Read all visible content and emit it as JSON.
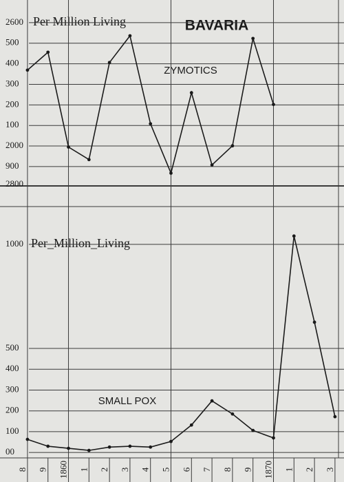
{
  "chart_data": [
    {
      "type": "line",
      "title": "BAVARIA",
      "axis_label": "Per Million Living",
      "annotation": "2800",
      "x": [
        1858,
        1859,
        1860,
        1861,
        1862,
        1863,
        1864,
        1865,
        1866,
        1867,
        1868,
        1869,
        1870
      ],
      "series": [
        {
          "name": "ZYMOTICS",
          "color": "#1a1a1a",
          "values": [
            2369,
            2456,
            1995,
            1934,
            2406,
            2536,
            2108,
            1868,
            2259,
            1908,
            2001,
            2523,
            2202
          ]
        }
      ],
      "xlim": [
        1856.66,
        1873.44
      ],
      "xgrid": [
        1858,
        1860,
        1865,
        1870
      ],
      "ylim": [
        1806,
        2710
      ],
      "yticks": [
        2600,
        {
          "value": 2500,
          "label": "500"
        },
        {
          "value": 2400,
          "label": "400"
        },
        {
          "value": 2300,
          "label": "300"
        },
        {
          "value": 2200,
          "label": "200"
        },
        {
          "value": 2100,
          "label": "100"
        },
        2000,
        {
          "value": 1900,
          "label": "900"
        }
      ],
      "grid": true
    },
    {
      "type": "line",
      "axis_label": "Per_Million_Living",
      "x": [
        1858,
        1859,
        1860,
        1861,
        1862,
        1863,
        1864,
        1865,
        1866,
        1867,
        1868,
        1869,
        1870,
        1871,
        1872,
        1873
      ],
      "series": [
        {
          "name": "SMALL POX",
          "color": "#1a1a1a",
          "values": [
            63,
            30,
            20,
            10,
            26,
            30,
            26,
            53,
            132,
            248,
            185,
            106,
            70,
            1040,
            626,
            172
          ]
        }
      ],
      "xlim": [
        1856.66,
        1873.44
      ],
      "xticks": [
        {
          "value": 1858,
          "label": "8"
        },
        {
          "value": 1859,
          "label": "9"
        },
        1860,
        {
          "value": 1861,
          "label": "1"
        },
        {
          "value": 1862,
          "label": "2"
        },
        {
          "value": 1863,
          "label": "3"
        },
        {
          "value": 1864,
          "label": "4"
        },
        {
          "value": 1865,
          "label": "5"
        },
        {
          "value": 1866,
          "label": "6"
        },
        {
          "value": 1867,
          "label": "7"
        },
        {
          "value": 1868,
          "label": "8"
        },
        {
          "value": 1869,
          "label": "9"
        },
        1870,
        {
          "value": 1871,
          "label": "1"
        },
        {
          "value": 1872,
          "label": "2"
        },
        {
          "value": 1873,
          "label": "3"
        }
      ],
      "ylim": [
        -26,
        1281
      ],
      "yticks": [
        1000,
        500,
        400,
        300,
        200,
        100,
        {
          "value": 0,
          "label": "00"
        }
      ],
      "grid": true
    }
  ]
}
